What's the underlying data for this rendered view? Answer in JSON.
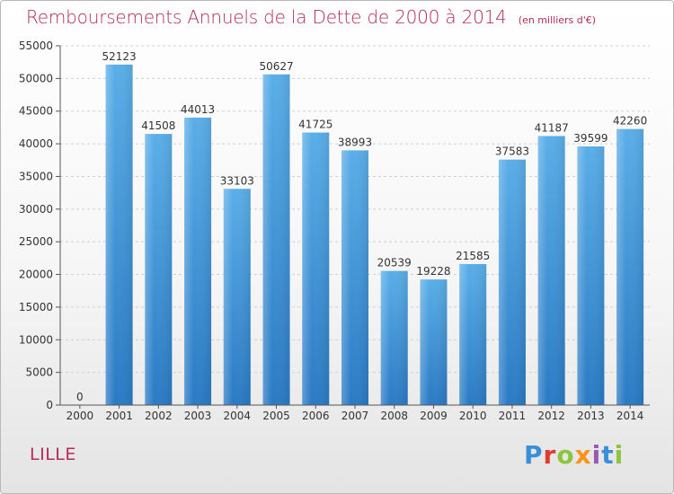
{
  "header": {
    "title": "Remboursements Annuels de la Dette de 2000 à 2014",
    "unit": "(en milliers d'€)"
  },
  "footer": {
    "city": "LILLE",
    "brand": "Proxiti",
    "brand_colors": [
      "#3a8fd6",
      "#e03b2f",
      "#8cc63f",
      "#f7941d",
      "#9b59b6",
      "#3a8fd6",
      "#8cc63f"
    ]
  },
  "colors": {
    "bar_light": "#5aaee8",
    "bar_dark": "#2a7ac4",
    "title": "#b42a5a",
    "grid": "#d0d0d0"
  },
  "chart_data": {
    "type": "bar",
    "title": "Remboursements Annuels de la Dette de 2000 à 2014",
    "xlabel": "",
    "ylabel": "",
    "categories": [
      "2000",
      "2001",
      "2002",
      "2003",
      "2004",
      "2005",
      "2006",
      "2007",
      "2008",
      "2009",
      "2010",
      "2011",
      "2012",
      "2013",
      "2014"
    ],
    "values": [
      0,
      52123,
      41508,
      44013,
      33103,
      50627,
      41725,
      38993,
      20539,
      19228,
      21585,
      37583,
      41187,
      39599,
      42260
    ],
    "value_labels": [
      "0",
      "52123",
      "41508",
      "44013",
      "33103",
      "50627",
      "41725",
      "38993",
      "20539",
      "19228",
      "21585",
      "37583",
      "41187",
      "39599",
      "42260"
    ],
    "yticks": [
      "0",
      "5000",
      "10000",
      "15000",
      "20000",
      "25000",
      "30000",
      "35000",
      "40000",
      "45000",
      "50000",
      "55000"
    ],
    "ylim": [
      0,
      55000
    ],
    "grid": true,
    "legend": "none"
  }
}
